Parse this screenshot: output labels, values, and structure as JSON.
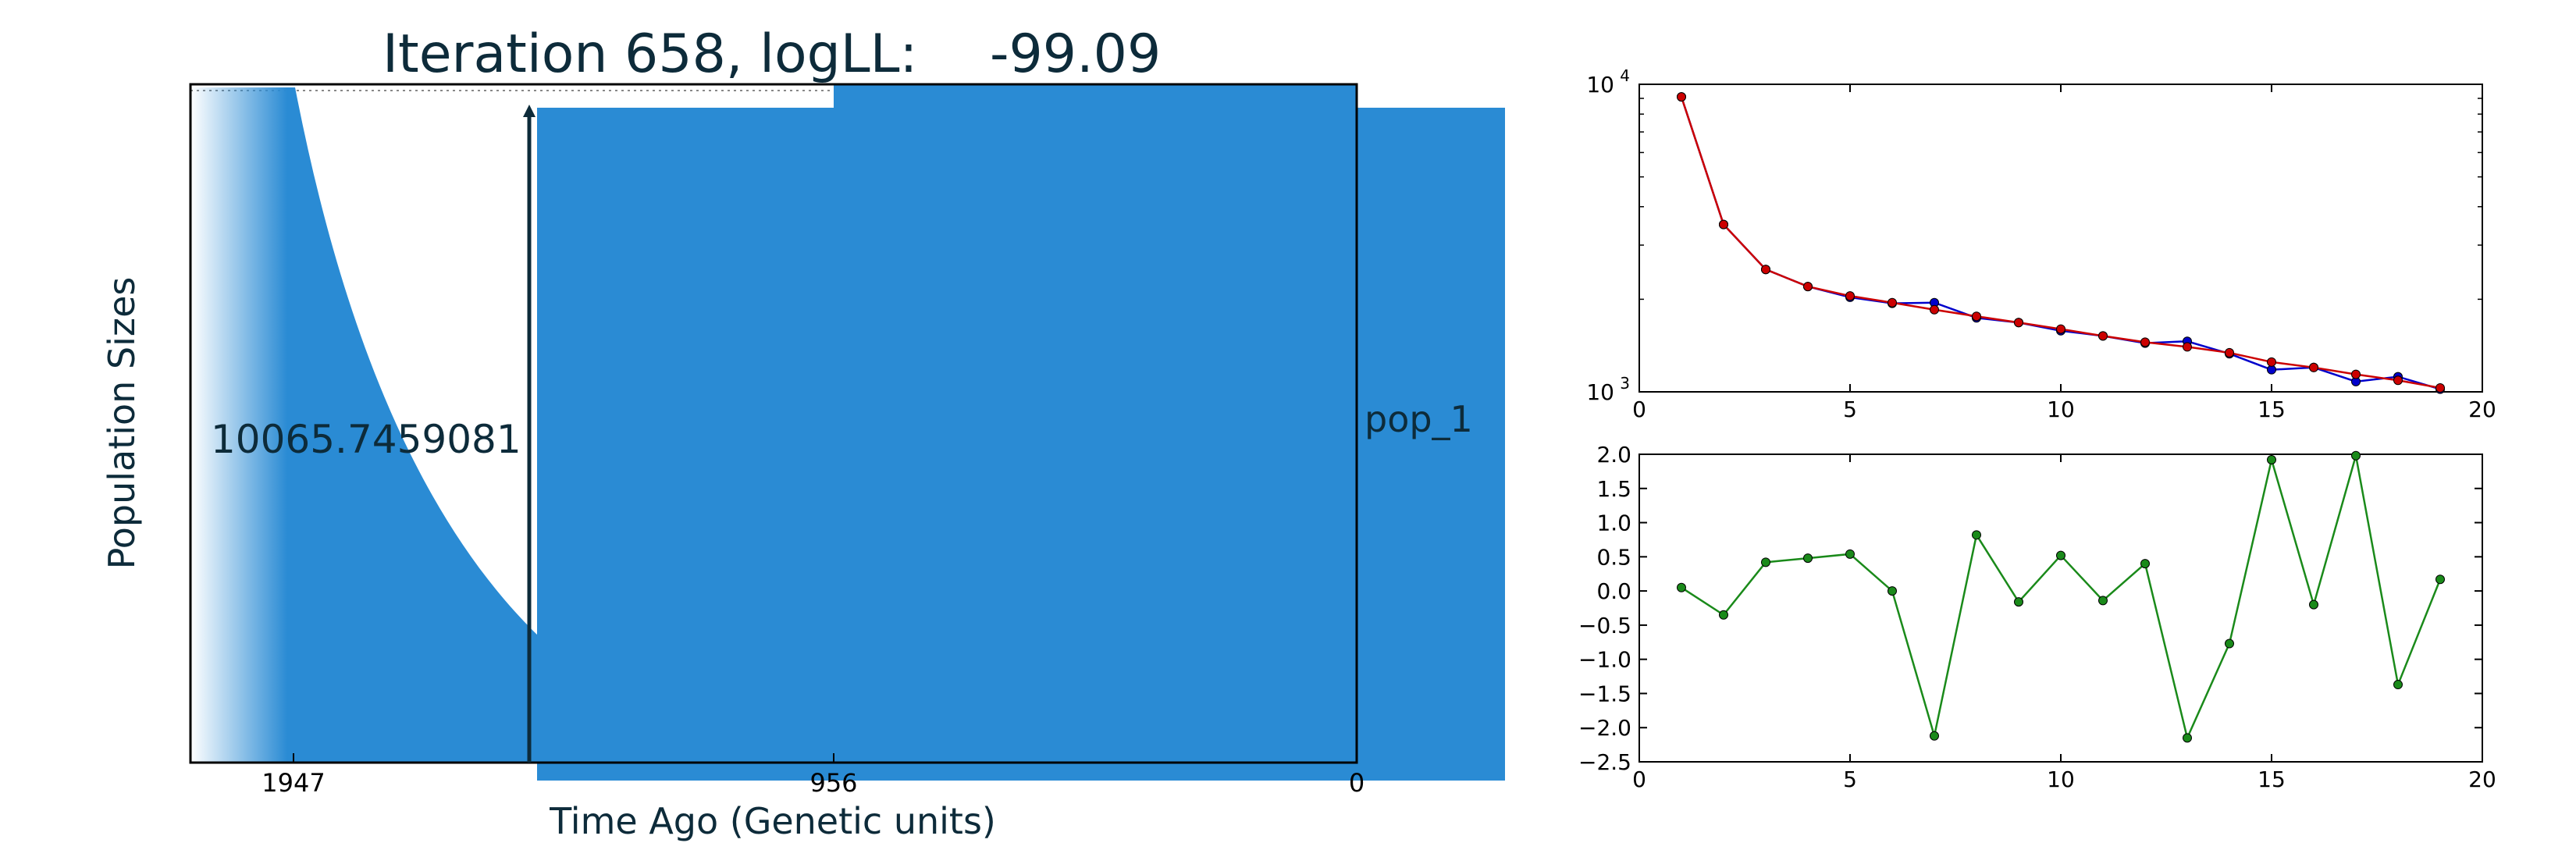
{
  "figure_title": "Iteration 658, logLL:",
  "figure_title_value": "-99.09",
  "colors": {
    "text": "#0d2b3a",
    "population_fill": "#2a8bd4",
    "series_blue": "#0000cc",
    "series_red": "#cc0000",
    "series_green": "#1a8a1a"
  },
  "chart_data": [
    {
      "type": "area",
      "xlabel": "Time Ago (Genetic units)",
      "ylabel": "Population Sizes",
      "xticks": [
        "1947",
        "956",
        "0"
      ],
      "x_direction": "reversed",
      "annotation_value": "10065.7459081",
      "population_label": "pop_1",
      "population_size_top": 10065.7459081
    },
    {
      "type": "line",
      "yscale": "log",
      "xlim": [
        0,
        20
      ],
      "ylim": [
        1000,
        10000
      ],
      "xticks": [
        "0",
        "5",
        "10",
        "15",
        "20"
      ],
      "yticks": [
        {
          "base": "10",
          "exp": "3",
          "value": 1000
        },
        {
          "base": "10",
          "exp": "4",
          "value": 10000
        }
      ],
      "x": [
        1,
        2,
        3,
        4,
        5,
        6,
        7,
        8,
        9,
        10,
        11,
        12,
        13,
        14,
        15,
        16,
        17,
        18,
        19
      ],
      "series": [
        {
          "color": "#0000cc",
          "values": [
            9100,
            3500,
            2500,
            2200,
            2030,
            1940,
            1950,
            1740,
            1680,
            1580,
            1520,
            1440,
            1460,
            1330,
            1180,
            1200,
            1080,
            1120,
            1020
          ]
        },
        {
          "color": "#cc0000",
          "values": [
            9100,
            3500,
            2500,
            2200,
            2050,
            1950,
            1850,
            1760,
            1680,
            1600,
            1520,
            1450,
            1400,
            1340,
            1250,
            1200,
            1140,
            1090,
            1030
          ]
        }
      ]
    },
    {
      "type": "line",
      "xlim": [
        0,
        20
      ],
      "ylim": [
        -2.5,
        2.0
      ],
      "xticks": [
        "0",
        "5",
        "10",
        "15",
        "20"
      ],
      "yticks": [
        "2.0",
        "1.5",
        "1.0",
        "0.5",
        "0.0",
        "−0.5",
        "−1.0",
        "−1.5",
        "−2.0",
        "−2.5"
      ],
      "x": [
        1,
        2,
        3,
        4,
        5,
        6,
        7,
        8,
        9,
        10,
        11,
        12,
        13,
        14,
        15,
        16,
        17,
        18,
        19
      ],
      "series": [
        {
          "color": "#1a8a1a",
          "values": [
            0.05,
            -0.35,
            0.42,
            0.48,
            0.54,
            0.0,
            -2.12,
            0.82,
            -0.16,
            0.52,
            -0.14,
            0.4,
            -2.15,
            -0.77,
            1.92,
            -0.2,
            1.98,
            -1.37,
            0.17
          ]
        }
      ]
    }
  ]
}
